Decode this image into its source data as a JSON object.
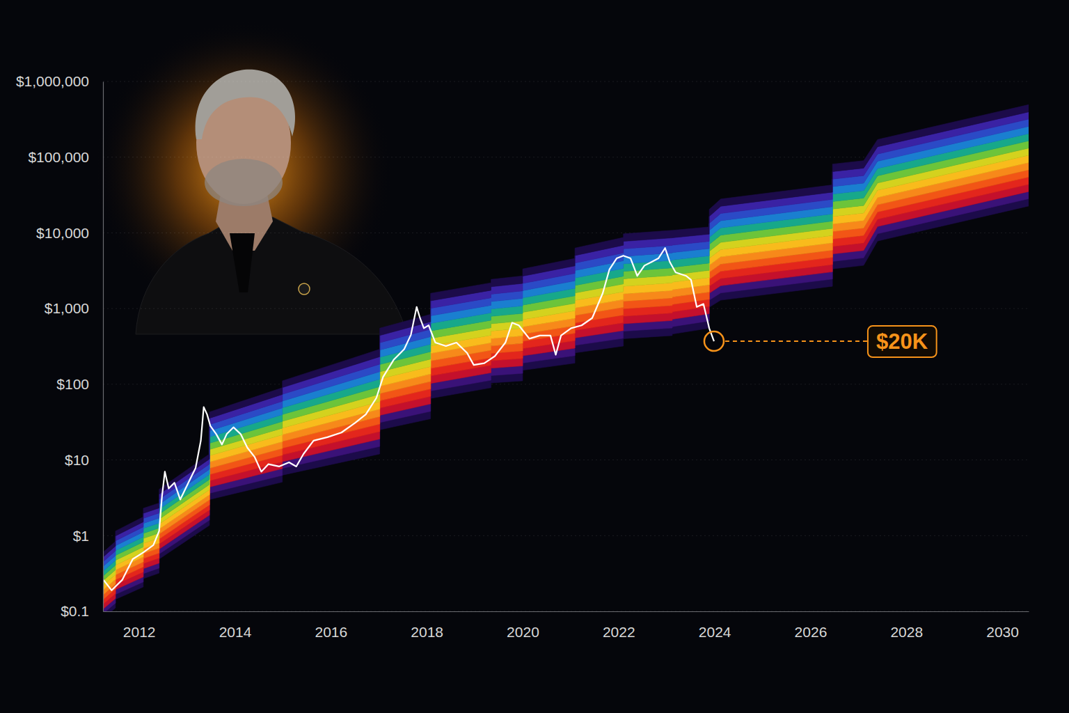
{
  "chart_data": {
    "type": "line",
    "log": "y",
    "grid": true,
    "xlim": [
      2011.25,
      2030.55
    ],
    "xticks": [
      2012,
      2014,
      2016,
      2018,
      2020,
      2022,
      2024,
      2026,
      2028,
      2030
    ],
    "ylim": [
      0.1,
      1000000
    ],
    "yticks": [
      {
        "value": 0.1,
        "label": "$0.1"
      },
      {
        "value": 1,
        "label": "$1"
      },
      {
        "value": 10,
        "label": "$10"
      },
      {
        "value": 100,
        "label": "$100"
      },
      {
        "value": 1000,
        "label": "$1,000"
      },
      {
        "value": 10000,
        "label": "$10,000"
      },
      {
        "value": 100000,
        "label": "$100,000"
      },
      {
        "value": 1000000,
        "label": "$1,000,000"
      }
    ],
    "series": [
      {
        "type": "band",
        "colors": [
          "#1c0b4a",
          "#3a1278",
          "#c4102c",
          "#e3261c",
          "#f25516",
          "#f7891a",
          "#f9bb1c",
          "#d4d21e",
          "#6cc43a",
          "#17a88a",
          "#1a7fd0",
          "#2b4ac6",
          "#3a22a4",
          "#1c0b4a"
        ],
        "x": [
          2011.26,
          2011.51,
          2011.51,
          2012.09,
          2012.09,
          2012.42,
          2012.42,
          2013.47,
          2013.47,
          2014.99,
          2014.99,
          2017.02,
          2017.02,
          2018.08,
          2018.08,
          2019.34,
          2019.34,
          2020.0,
          2020.0,
          2021.09,
          2021.09,
          2022.1,
          2022.1,
          2023.12,
          2023.12,
          2023.89,
          2023.89,
          2024.13,
          2026.46,
          2026.46,
          2027.11,
          2027.4,
          2030.55
        ],
        "lower": [
          0.081,
          0.111,
          0.144,
          0.21,
          0.27,
          0.32,
          0.49,
          1.37,
          3.0,
          5.1,
          6.3,
          12,
          25,
          35,
          65,
          90,
          104,
          111,
          153,
          190,
          260,
          320,
          400,
          440,
          460,
          550,
          1040,
          1290,
          1970,
          3340,
          3720,
          7800,
          22600
        ],
        "upper": [
          0.61,
          0.84,
          1.15,
          1.77,
          2.3,
          2.7,
          4.1,
          12,
          43,
          90,
          111,
          290,
          550,
          840,
          1590,
          2190,
          2430,
          2700,
          3340,
          4600,
          6300,
          8700,
          9700,
          10800,
          10800,
          12000,
          20400,
          28000,
          43000,
          81000,
          90000,
          171000,
          494000
        ]
      },
      {
        "type": "line",
        "color": "#ffffff",
        "x": [
          2011.26,
          2011.43,
          2011.65,
          2011.87,
          2012.09,
          2012.3,
          2012.42,
          2012.48,
          2012.54,
          2012.62,
          2012.74,
          2012.86,
          2013.03,
          2013.18,
          2013.29,
          2013.35,
          2013.42,
          2013.49,
          2013.61,
          2013.73,
          2013.83,
          2013.97,
          2014.12,
          2014.26,
          2014.41,
          2014.55,
          2014.7,
          2014.92,
          2015.13,
          2015.28,
          2015.43,
          2015.64,
          2015.93,
          2016.22,
          2016.51,
          2016.73,
          2016.95,
          2017.09,
          2017.31,
          2017.53,
          2017.67,
          2017.79,
          2017.86,
          2017.94,
          2018.04,
          2018.18,
          2018.4,
          2018.62,
          2018.84,
          2018.98,
          2019.2,
          2019.42,
          2019.64,
          2019.78,
          2019.92,
          2020.14,
          2020.36,
          2020.58,
          2020.69,
          2020.8,
          2021.01,
          2021.23,
          2021.45,
          2021.67,
          2021.81,
          2021.96,
          2022.1,
          2022.25,
          2022.39,
          2022.54,
          2022.68,
          2022.83,
          2022.97,
          2023.07,
          2023.19,
          2023.41,
          2023.51,
          2023.63,
          2023.77,
          2023.89,
          2023.99
        ],
        "values": [
          0.26,
          0.19,
          0.26,
          0.49,
          0.6,
          0.75,
          1.15,
          3.3,
          7,
          4.2,
          5,
          3,
          5,
          7.8,
          18,
          50,
          40,
          28,
          22,
          16,
          22,
          27,
          22,
          14.5,
          11,
          7,
          8.8,
          8.2,
          9.3,
          8.2,
          12,
          18,
          20,
          23,
          31,
          40,
          66,
          125,
          210,
          290,
          450,
          1050,
          750,
          550,
          600,
          355,
          320,
          355,
          260,
          180,
          190,
          235,
          355,
          650,
          600,
          400,
          440,
          440,
          245,
          440,
          550,
          600,
          750,
          1600,
          3300,
          4600,
          5000,
          4600,
          2700,
          3700,
          4100,
          4600,
          6300,
          4100,
          3000,
          2700,
          2400,
          1050,
          1150,
          550,
          370
        ]
      }
    ],
    "annotations": [
      {
        "text": "$20K",
        "color": "#f7931a"
      }
    ]
  }
}
